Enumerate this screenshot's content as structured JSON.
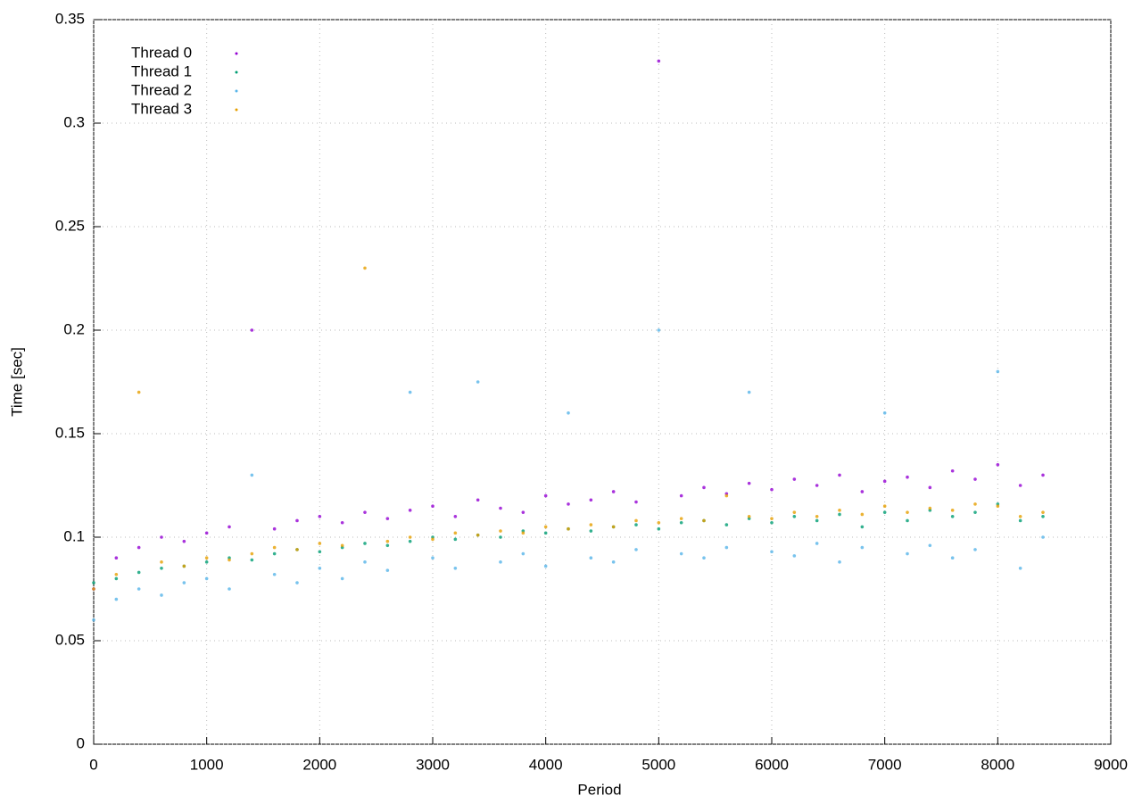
{
  "chart_data": {
    "type": "scatter",
    "x_label": "Period",
    "y_label": "Time [sec]",
    "x": [
      0,
      200,
      400,
      600,
      800,
      1000,
      1200,
      1400,
      1600,
      1800,
      2000,
      2200,
      2400,
      2600,
      2800,
      3000,
      3200,
      3400,
      3600,
      3800,
      4000,
      4200,
      4400,
      4600,
      4800,
      5000,
      5200,
      5400,
      5600,
      5800,
      6000,
      6200,
      6400,
      6600,
      6800,
      7000,
      7200,
      7400,
      7600,
      7800,
      8000,
      8200,
      8400
    ],
    "series": [
      {
        "name": "Thread 0",
        "color": "#9400d3",
        "values": [
          0.075,
          0.09,
          0.095,
          0.1,
          0.098,
          0.102,
          0.105,
          0.2,
          0.104,
          0.108,
          0.11,
          0.107,
          0.112,
          0.109,
          0.113,
          0.115,
          0.11,
          0.118,
          0.114,
          0.112,
          0.12,
          0.116,
          0.118,
          0.122,
          0.117,
          0.33,
          0.12,
          0.124,
          0.121,
          0.126,
          0.123,
          0.128,
          0.125,
          0.13,
          0.122,
          0.127,
          0.129,
          0.124,
          0.132,
          0.128,
          0.135,
          0.125,
          0.13
        ]
      },
      {
        "name": "Thread 1",
        "color": "#009e73",
        "values": [
          0.078,
          0.08,
          0.083,
          0.085,
          0.086,
          0.088,
          0.09,
          0.089,
          0.092,
          0.094,
          0.093,
          0.095,
          0.097,
          0.096,
          0.098,
          0.1,
          0.099,
          0.101,
          0.1,
          0.103,
          0.102,
          0.104,
          0.103,
          0.105,
          0.106,
          0.104,
          0.107,
          0.108,
          0.106,
          0.109,
          0.107,
          0.11,
          0.108,
          0.111,
          0.105,
          0.112,
          0.108,
          0.113,
          0.11,
          0.112,
          0.116,
          0.108,
          0.11
        ]
      },
      {
        "name": "Thread 2",
        "color": "#56b4e9",
        "values": [
          0.06,
          0.07,
          0.075,
          0.072,
          0.078,
          0.08,
          0.075,
          0.13,
          0.082,
          0.078,
          0.085,
          0.08,
          0.088,
          0.084,
          0.17,
          0.09,
          0.085,
          0.175,
          0.088,
          0.092,
          0.086,
          0.16,
          0.09,
          0.088,
          0.094,
          0.2,
          0.092,
          0.09,
          0.095,
          0.17,
          0.093,
          0.091,
          0.097,
          0.088,
          0.095,
          0.16,
          0.092,
          0.096,
          0.09,
          0.094,
          0.18,
          0.085,
          0.1
        ]
      },
      {
        "name": "Thread 3",
        "color": "#e69f00",
        "values": [
          0.075,
          0.082,
          0.17,
          0.088,
          0.086,
          0.09,
          0.089,
          0.092,
          0.095,
          0.094,
          0.097,
          0.096,
          0.23,
          0.098,
          0.1,
          0.099,
          0.102,
          0.101,
          0.103,
          0.102,
          0.105,
          0.104,
          0.106,
          0.105,
          0.108,
          0.107,
          0.109,
          0.108,
          0.12,
          0.11,
          0.109,
          0.112,
          0.11,
          0.113,
          0.111,
          0.115,
          0.112,
          0.114,
          0.113,
          0.116,
          0.115,
          0.11,
          0.112
        ]
      }
    ],
    "xlim": [
      0,
      9000
    ],
    "xticks": [
      0,
      1000,
      2000,
      3000,
      4000,
      5000,
      6000,
      7000,
      8000,
      9000
    ],
    "ylim": [
      0,
      0.35
    ],
    "yticks": [
      0,
      0.05,
      0.1,
      0.15,
      0.2,
      0.25,
      0.3,
      0.35
    ],
    "grid": true,
    "legend": "top-left"
  }
}
